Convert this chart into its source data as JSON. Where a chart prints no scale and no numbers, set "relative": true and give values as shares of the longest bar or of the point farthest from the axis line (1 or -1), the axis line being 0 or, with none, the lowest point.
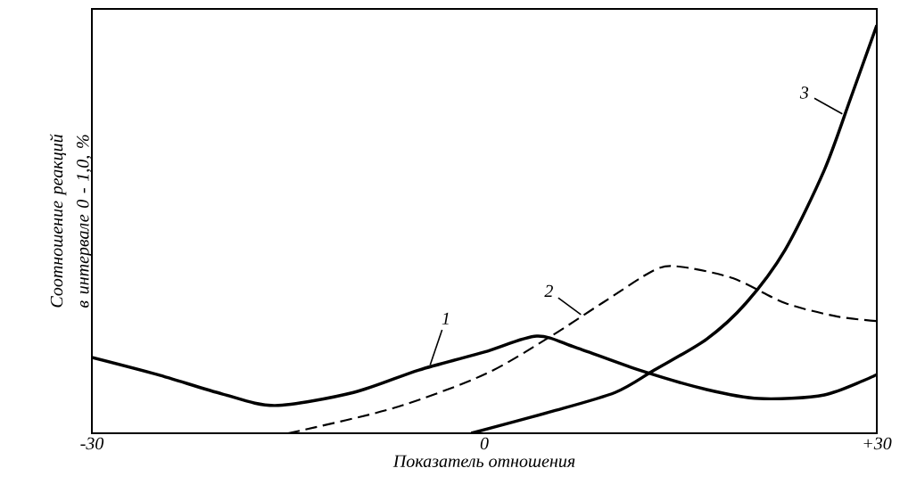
{
  "chart_data": {
    "type": "line",
    "relative": true,
    "xlabel": "Показатель отношения",
    "ylabel": "Соотношение реакций в интервале 0 - 1,0, %",
    "xlim": [
      -30,
      30
    ],
    "xticks": [
      -30,
      0,
      {
        "value": 30,
        "label": "+30"
      }
    ],
    "series": [
      {
        "name": "1",
        "color": "#000000",
        "line_style": "solid",
        "x": [
          -30,
          -25,
          -20,
          -16,
          -10,
          -5,
          0,
          4,
          7,
          12,
          17,
          21,
          26,
          30
        ],
        "values": [
          0.186,
          0.144,
          0.096,
          0.068,
          0.1,
          0.155,
          0.199,
          0.238,
          0.21,
          0.153,
          0.107,
          0.085,
          0.094,
          0.144
        ]
      },
      {
        "name": "2",
        "color": "#000000",
        "line_style": "dashed",
        "x": [
          -15,
          -7,
          0,
          5,
          9,
          13,
          15,
          19,
          23,
          27,
          30
        ],
        "values": [
          0,
          0.061,
          0.144,
          0.236,
          0.319,
          0.4,
          0.408,
          0.38,
          0.319,
          0.286,
          0.275
        ]
      },
      {
        "name": "3",
        "color": "#000000",
        "line_style": "solid",
        "x": [
          -1,
          5,
          10,
          13,
          17,
          20,
          23,
          26,
          28,
          30
        ],
        "values": [
          0,
          0.052,
          0.1,
          0.155,
          0.231,
          0.319,
          0.45,
          0.646,
          0.821,
          1.0
        ]
      }
    ]
  }
}
